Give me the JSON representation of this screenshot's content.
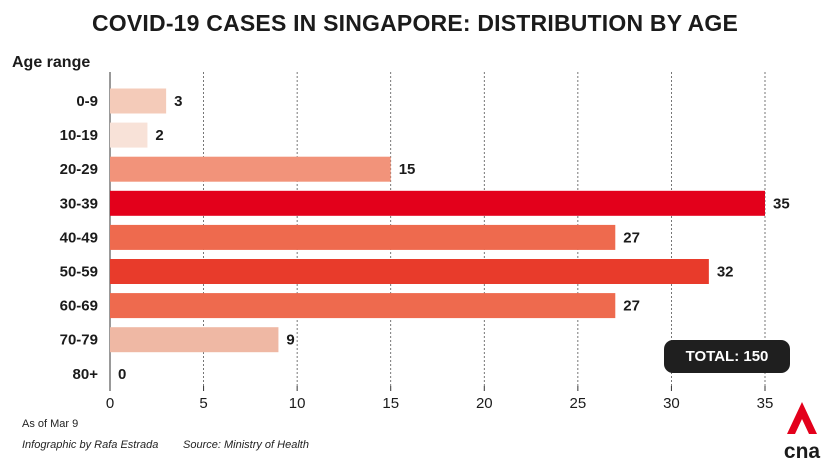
{
  "title": "COVID-19 CASES IN SINGAPORE: DISTRIBUTION BY AGE",
  "axis_title": "Age range",
  "total_label": "TOTAL: 150",
  "footer": {
    "as_of": "As of Mar 9",
    "credit": "Infographic by Rafa Estrada",
    "source": "Source: Ministry of Health"
  },
  "logo": {
    "text": "cna",
    "icon": "cna-logo-icon"
  },
  "chart_data": {
    "type": "bar",
    "orientation": "horizontal",
    "categories": [
      "0-9",
      "10-19",
      "20-29",
      "30-39",
      "40-49",
      "50-59",
      "60-69",
      "70-79",
      "80+"
    ],
    "values": [
      3,
      2,
      15,
      35,
      27,
      32,
      27,
      9,
      0
    ],
    "bar_colors": [
      "#f4cbb9",
      "#f8e2d8",
      "#f2937a",
      "#e3001b",
      "#ee6a4e",
      "#e83b2b",
      "#ee6a4e",
      "#efb8a4",
      "#f8e2d8"
    ],
    "title": "COVID-19 CASES IN SINGAPORE: DISTRIBUTION BY AGE",
    "ylabel": "Age range",
    "xlabel": "",
    "xlim": [
      0,
      35
    ],
    "xticks": [
      0,
      5,
      10,
      15,
      20,
      25,
      30,
      35
    ],
    "grid": true,
    "legend": "none"
  }
}
